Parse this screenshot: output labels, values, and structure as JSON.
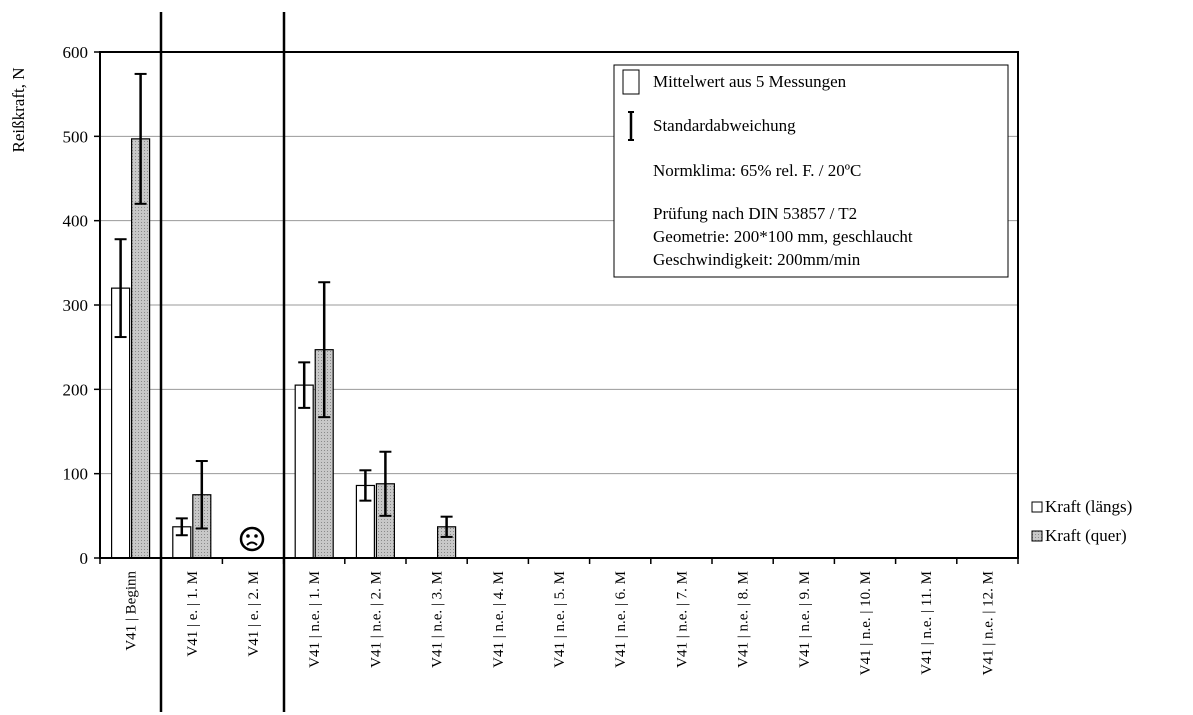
{
  "chart_data": {
    "type": "bar",
    "ylabel": "Reißkraft, N",
    "ylim": [
      0,
      600
    ],
    "yticks": [
      0,
      100,
      200,
      300,
      400,
      500,
      600
    ],
    "grid": true,
    "categories": [
      "V41 | Beginn",
      "V41 | e. | 1. M",
      "V41 | e. | 2. M",
      "V41 | n.e. | 1. M",
      "V41 | n.e. | 2. M",
      "V41 | n.e. | 3. M",
      "V41 | n.e. | 4. M",
      "V41 | n.e. | 5. M",
      "V41 | n.e. | 6. M",
      "V41 | n.e. | 7. M",
      "V41 | n.e. | 8. M",
      "V41 | n.e. | 9. M",
      "V41 | n.e. | 10. M",
      "V41 | n.e. | 11. M",
      "V41 | n.e. | 12. M"
    ],
    "series": [
      {
        "name": "Kraft (längs)",
        "color": "#ffffff",
        "values": [
          320,
          37,
          null,
          205,
          86,
          null,
          null,
          null,
          null,
          null,
          null,
          null,
          null,
          null,
          null
        ],
        "errors": [
          58,
          10,
          null,
          27,
          18,
          null,
          null,
          null,
          null,
          null,
          null,
          null,
          null,
          null,
          null
        ]
      },
      {
        "name": "Kraft (quer)",
        "color": "#c8c8c8",
        "values": [
          497,
          75,
          null,
          247,
          88,
          37,
          null,
          null,
          null,
          null,
          null,
          null,
          null,
          null,
          null
        ],
        "errors": [
          77,
          40,
          null,
          80,
          38,
          12,
          null,
          null,
          null,
          null,
          null,
          null,
          null,
          null,
          null
        ]
      }
    ],
    "annotation_box": {
      "mean_label": "Mittelwert aus 5 Messungen",
      "std_label": "Standardabweichung",
      "climate": "Normklima: 65% rel. F. / 20ºC",
      "test_line1": "Prüfung nach DIN 53857 / T2",
      "test_line2": "Geometrie: 200*100 mm, geschlaucht",
      "test_line3": "Geschwindigkeit: 200mm/min"
    },
    "sad_face_icon": "sad-face-icon",
    "legend_position": "right"
  }
}
